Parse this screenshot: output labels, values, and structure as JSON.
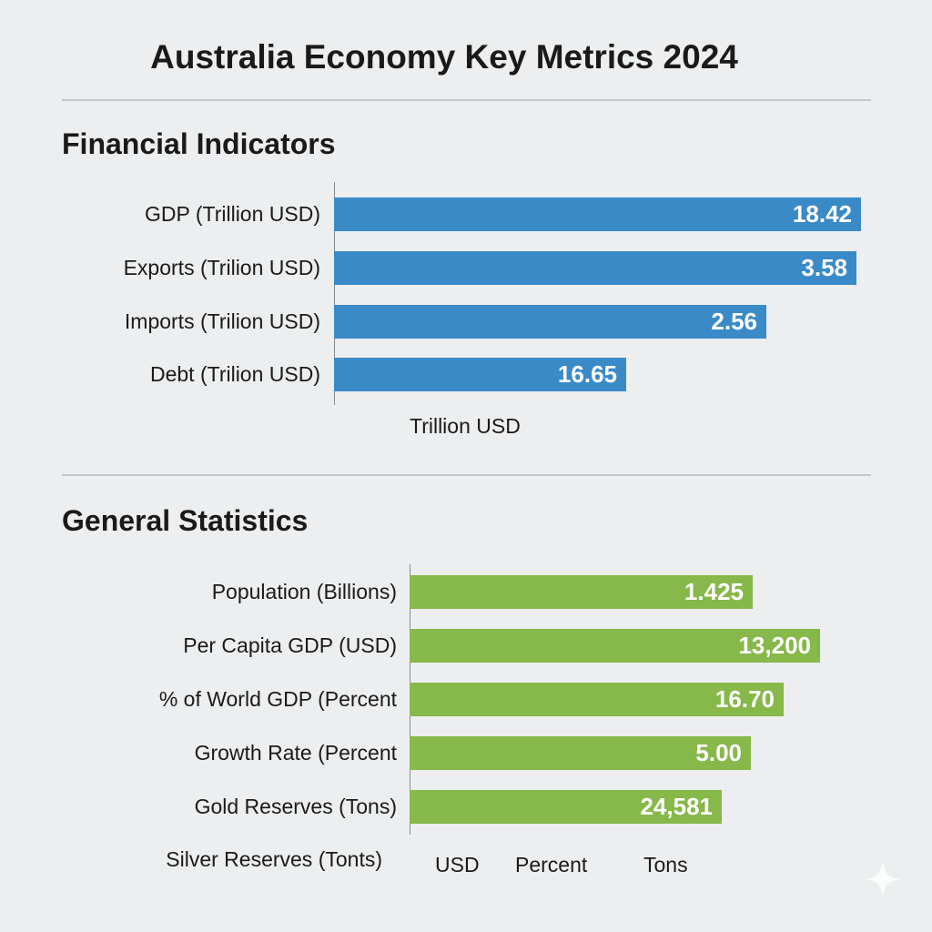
{
  "title": "Australia Economy Key Metrics 2024",
  "colors": {
    "financial": "#3a8ac8",
    "general": "#86b84a",
    "background": "#eceeef"
  },
  "chart_data": [
    {
      "type": "bar",
      "orientation": "horizontal",
      "title": "Financial Indicators",
      "xlabel": "Trillion USD",
      "categories": [
        "GDP (Trillion USD)",
        "Exports (Trilion USD)",
        "Imports (Trilion USD)",
        "Debt (Trilion USD)"
      ],
      "values": [
        18.42,
        3.58,
        2.56,
        16.65
      ],
      "data_labels": [
        "18.42",
        "3.58",
        "2.56",
        "16.65"
      ],
      "grid": false
    },
    {
      "type": "bar",
      "orientation": "horizontal",
      "title": "General Statistics",
      "categories": [
        "Population (Billions)",
        "Per Capita GDP (USD)",
        "% of World GDP (Percent",
        "Growth Rate (Percent",
        "Gold Reserves (Tons)"
      ],
      "values": [
        1.425,
        13200,
        16.7,
        5.0,
        24581
      ],
      "data_labels": [
        "1.425",
        "13,200",
        "16.70",
        "5.00",
        "24,581"
      ],
      "extra_label": "Silver Reserves (Tonts)",
      "unit_labels": [
        "USD",
        "Percent",
        "Tons"
      ],
      "grid": false
    }
  ]
}
